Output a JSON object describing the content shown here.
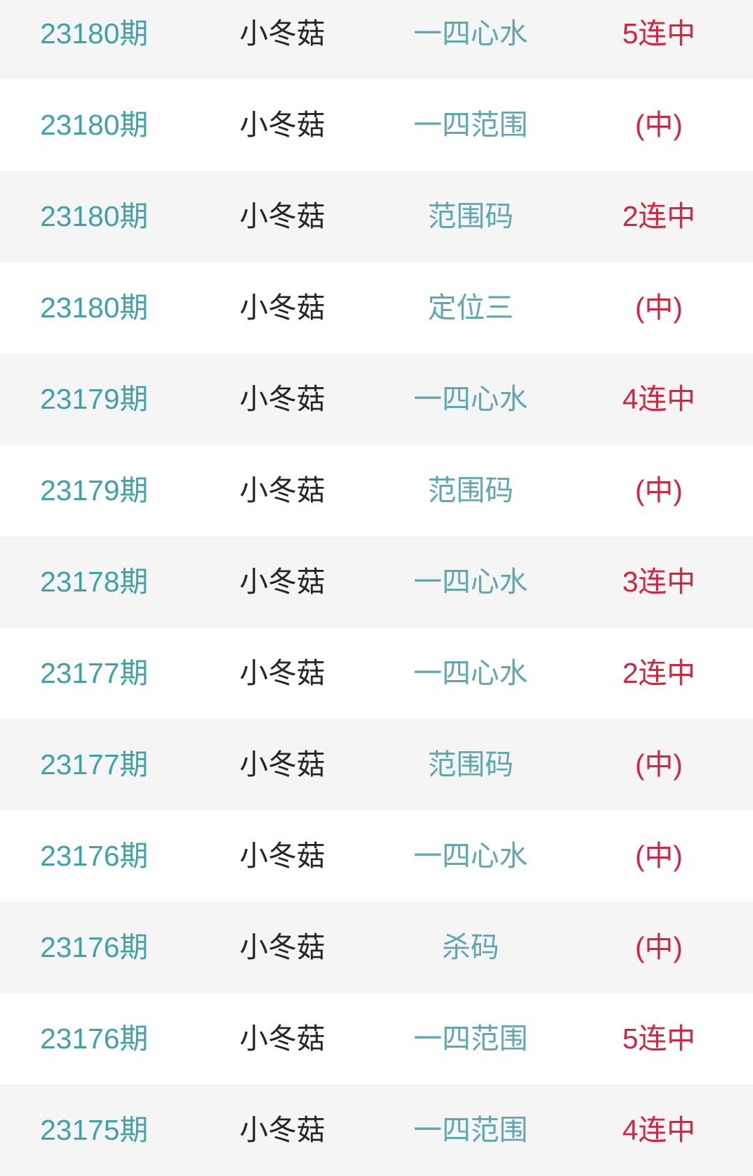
{
  "colors": {
    "period_teal": "#3ea2aa",
    "category_teal": "#5fa8b0",
    "result_red": "#d5243f",
    "name_dark": "#262626",
    "row_alt_bg": "#f5f5f6",
    "row_bg": "#ffffff"
  },
  "table": {
    "columns": [
      "period",
      "name",
      "category",
      "result"
    ],
    "rows": [
      {
        "period": "23180期",
        "name": "小冬菇",
        "category": "一四心水",
        "result": "5连中"
      },
      {
        "period": "23180期",
        "name": "小冬菇",
        "category": "一四范围",
        "result": "(中)"
      },
      {
        "period": "23180期",
        "name": "小冬菇",
        "category": "范围码",
        "result": "2连中"
      },
      {
        "period": "23180期",
        "name": "小冬菇",
        "category": "定位三",
        "result": "(中)"
      },
      {
        "period": "23179期",
        "name": "小冬菇",
        "category": "一四心水",
        "result": "4连中"
      },
      {
        "period": "23179期",
        "name": "小冬菇",
        "category": "范围码",
        "result": "(中)"
      },
      {
        "period": "23178期",
        "name": "小冬菇",
        "category": "一四心水",
        "result": "3连中"
      },
      {
        "period": "23177期",
        "name": "小冬菇",
        "category": "一四心水",
        "result": "2连中"
      },
      {
        "period": "23177期",
        "name": "小冬菇",
        "category": "范围码",
        "result": "(中)"
      },
      {
        "period": "23176期",
        "name": "小冬菇",
        "category": "一四心水",
        "result": "(中)"
      },
      {
        "period": "23176期",
        "name": "小冬菇",
        "category": "杀码",
        "result": "(中)"
      },
      {
        "period": "23176期",
        "name": "小冬菇",
        "category": "一四范围",
        "result": "5连中"
      },
      {
        "period": "23175期",
        "name": "小冬菇",
        "category": "一四范围",
        "result": "4连中"
      }
    ]
  }
}
